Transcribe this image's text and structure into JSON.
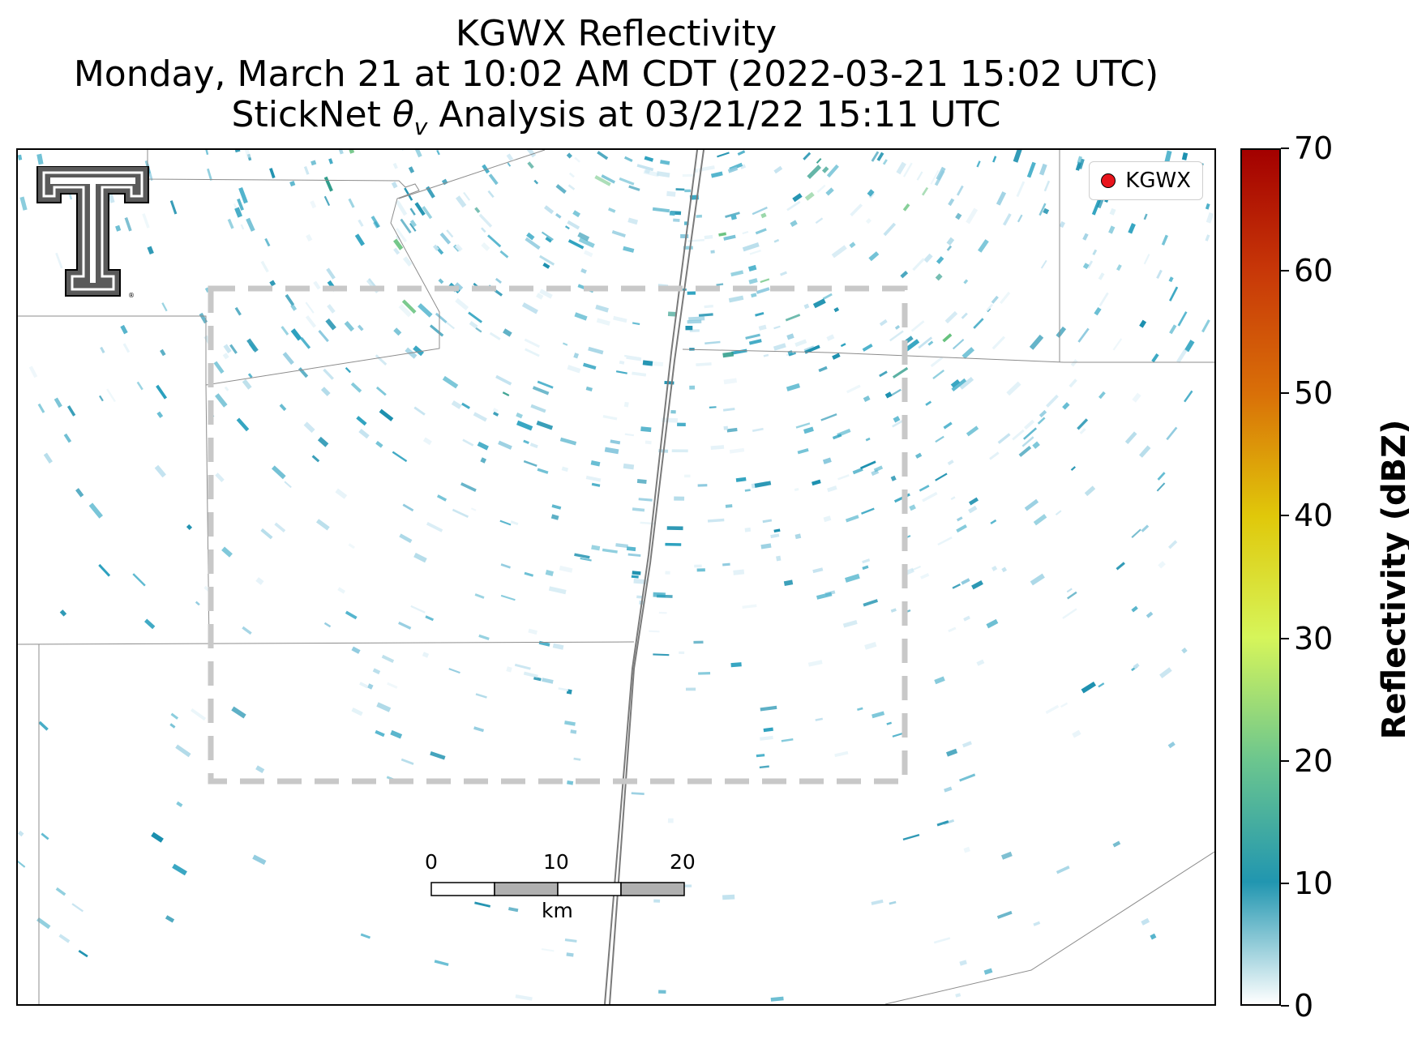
{
  "title": {
    "line1": "KGWX Reflectivity",
    "line2": "Monday, March 21 at 10:02 AM CDT (2022-03-21 15:02 UTC)",
    "line3_prefix": "StickNet ",
    "line3_symbol": "θ",
    "line3_subscript": "v",
    "line3_suffix": " Analysis at 03/21/22 15:11 UTC"
  },
  "legend": {
    "label": "KGWX",
    "marker_color": "#e8141c"
  },
  "scale_bar": {
    "ticks": [
      "0",
      "10",
      "20"
    ],
    "unit": "km"
  },
  "colorbar": {
    "title": "Reflectivity (dBZ)",
    "ticks": [
      "0",
      "10",
      "20",
      "30",
      "40",
      "50",
      "60",
      "70"
    ],
    "range": [
      0,
      70
    ],
    "colors": [
      "#ffffff",
      "#2196b0",
      "#6cc68e",
      "#d6f55a",
      "#e0c80a",
      "#d97008",
      "#c83808",
      "#a30000"
    ]
  },
  "map": {
    "analysis_box_color": "#c8c8c8",
    "boundary_color": "#8c8c8c",
    "echo_colors": [
      "#1a8fae",
      "#2aa0be",
      "#4fb3cc",
      "#8cc9de",
      "#c2e2ef",
      "#e3f2f8",
      "#2f9c8a",
      "#67c27e"
    ]
  },
  "logo": {
    "name": "texas-tech-double-t-logo"
  }
}
